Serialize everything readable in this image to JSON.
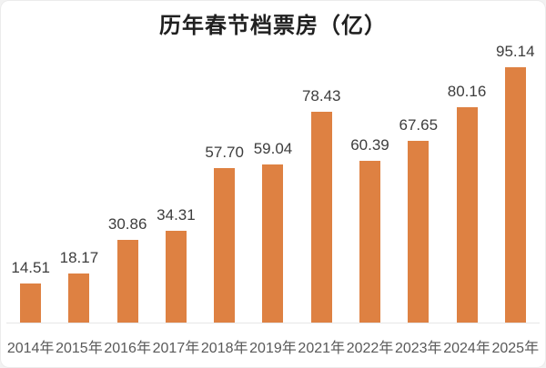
{
  "chart_data": {
    "type": "bar",
    "title": "历年春节档票房（亿）",
    "categories": [
      "2014年",
      "2015年",
      "2016年",
      "2017年",
      "2018年",
      "2019年",
      "2021年",
      "2022年",
      "2023年",
      "2024年",
      "2025年"
    ],
    "values": [
      14.51,
      18.17,
      30.86,
      34.31,
      57.7,
      59.04,
      78.43,
      60.39,
      67.65,
      80.16,
      95.14
    ],
    "value_labels": [
      "14.51",
      "18.17",
      "30.86",
      "34.31",
      "57.70",
      "59.04",
      "78.43",
      "60.39",
      "67.65",
      "80.16",
      "95.14"
    ],
    "xlabel": "",
    "ylabel": "",
    "ylim": [
      0,
      100
    ],
    "grid": false,
    "legend": "none",
    "bar_color": "#DE8142",
    "value_label_color": "#3d3d3d",
    "axis_label_color": "#595959",
    "title_color": "#202020",
    "axis_line_color": "#e7e7e7",
    "background_color": "#ffffff"
  }
}
